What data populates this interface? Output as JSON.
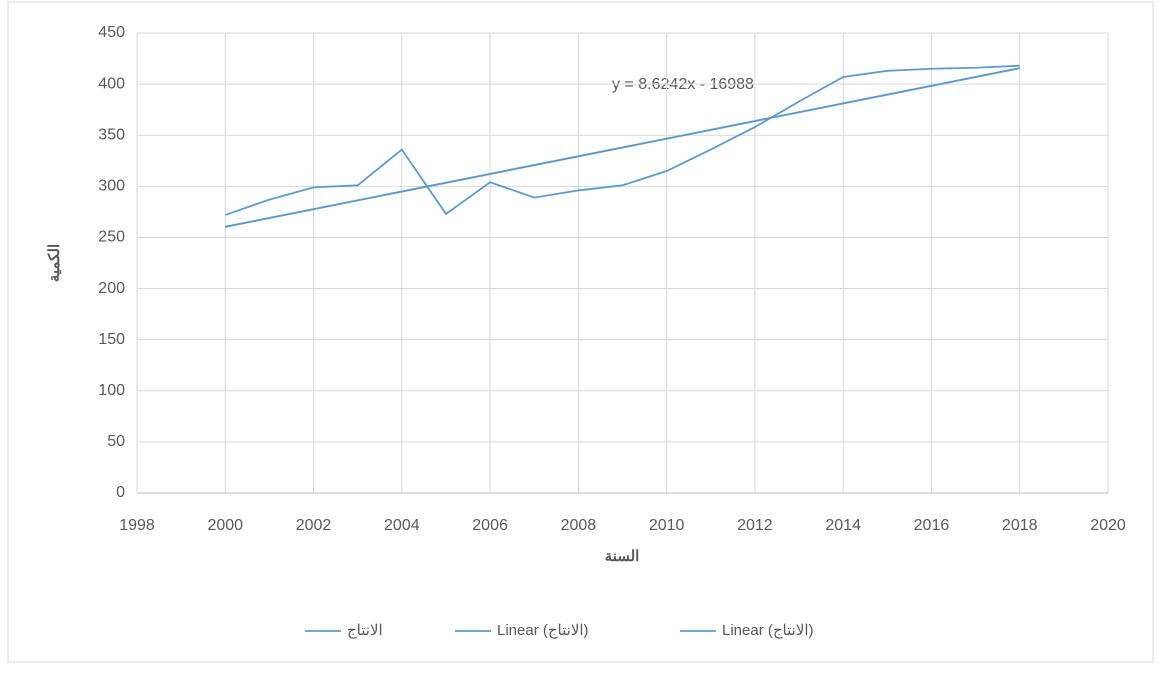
{
  "chart_data": {
    "type": "line",
    "y_label": "الكمية",
    "x_label": "السنة",
    "annotation": "y = 8.6242x - 16988",
    "series": [
      {
        "name": "الانتاج",
        "color": "#5b9bd5",
        "x": [
          2000,
          2001,
          2002,
          2003,
          2004,
          2005,
          2006,
          2007,
          2008,
          2009,
          2010,
          2011,
          2012,
          2013,
          2014,
          2015,
          2016,
          2017,
          2018
        ],
        "values": [
          272,
          287,
          299,
          301,
          336,
          273,
          304,
          289,
          296,
          301,
          315,
          336,
          358,
          383,
          407,
          413,
          415,
          416,
          418
        ]
      },
      {
        "name": "Linear (الانتاج)",
        "color": "#5b9bd5",
        "x": [
          2000,
          2018
        ],
        "values": [
          260.4,
          415.6
        ]
      },
      {
        "name": "Linear (الانتاج)",
        "color": "#5b9bd5",
        "x": [
          2000,
          2018
        ],
        "values": [
          260.4,
          415.6
        ]
      }
    ],
    "xlim": [
      1998,
      2020
    ],
    "xticks": [
      1998,
      2000,
      2002,
      2004,
      2006,
      2008,
      2010,
      2012,
      2014,
      2016,
      2018,
      2020
    ],
    "ylim": [
      0,
      450
    ],
    "yticks": [
      0,
      50,
      100,
      150,
      200,
      250,
      300,
      350,
      400,
      450
    ],
    "grid": true
  }
}
